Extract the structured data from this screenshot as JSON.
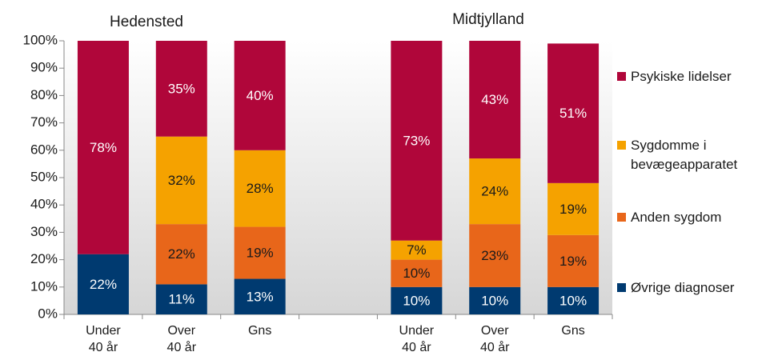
{
  "chart_data": {
    "type": "stacked_bar",
    "annotations": [
      {
        "text": "Hedensted"
      },
      {
        "text": "Midtjylland"
      }
    ],
    "categories": [
      "Under 40 år",
      "Over 40 år",
      "Gns",
      null,
      "Under 40 år",
      "Over 40 år",
      "Gns"
    ],
    "series": [
      {
        "name": "Øvrige diagnoser",
        "color": "#003a70",
        "label_color": "#ffffff",
        "values": [
          22,
          11,
          13,
          null,
          10,
          10,
          10
        ],
        "value_labels": [
          "22%",
          "11%",
          "13%",
          null,
          "10%",
          "10%",
          "10%"
        ]
      },
      {
        "name": "Anden sygdom",
        "color": "#e8661a",
        "label_color": "#1a1a1a",
        "values": [
          0,
          22,
          19,
          null,
          10,
          23,
          19
        ],
        "value_labels": [
          null,
          "22%",
          "19%",
          null,
          "10%",
          "23%",
          "19%"
        ]
      },
      {
        "name": "Sygdomme i bevægeapparatet",
        "color": "#f5a200",
        "label_color": "#1a1a1a",
        "values": [
          0,
          32,
          28,
          null,
          7,
          24,
          19
        ],
        "value_labels": [
          null,
          "32%",
          "28%",
          null,
          "7%",
          "24%",
          "19%"
        ]
      },
      {
        "name": "Psykiske lidelser",
        "color": "#b0063a",
        "label_color": "#ffffff",
        "values": [
          78,
          35,
          40,
          null,
          73,
          43,
          51
        ],
        "value_labels": [
          "78%",
          "35%",
          "40%",
          null,
          "73%",
          "43%",
          "51%"
        ]
      }
    ],
    "ylim": [
      0,
      100
    ],
    "yticks": [
      {
        "value": 0,
        "label": "0%"
      },
      {
        "value": 10,
        "label": "10%"
      },
      {
        "value": 20,
        "label": "20%"
      },
      {
        "value": 30,
        "label": "30%"
      },
      {
        "value": 40,
        "label": "40%"
      },
      {
        "value": 50,
        "label": "50%"
      },
      {
        "value": 60,
        "label": "60%"
      },
      {
        "value": 70,
        "label": "70%"
      },
      {
        "value": 80,
        "label": "80%"
      },
      {
        "value": 90,
        "label": "90%"
      },
      {
        "value": 100,
        "label": "100%"
      }
    ],
    "legend": "right"
  }
}
